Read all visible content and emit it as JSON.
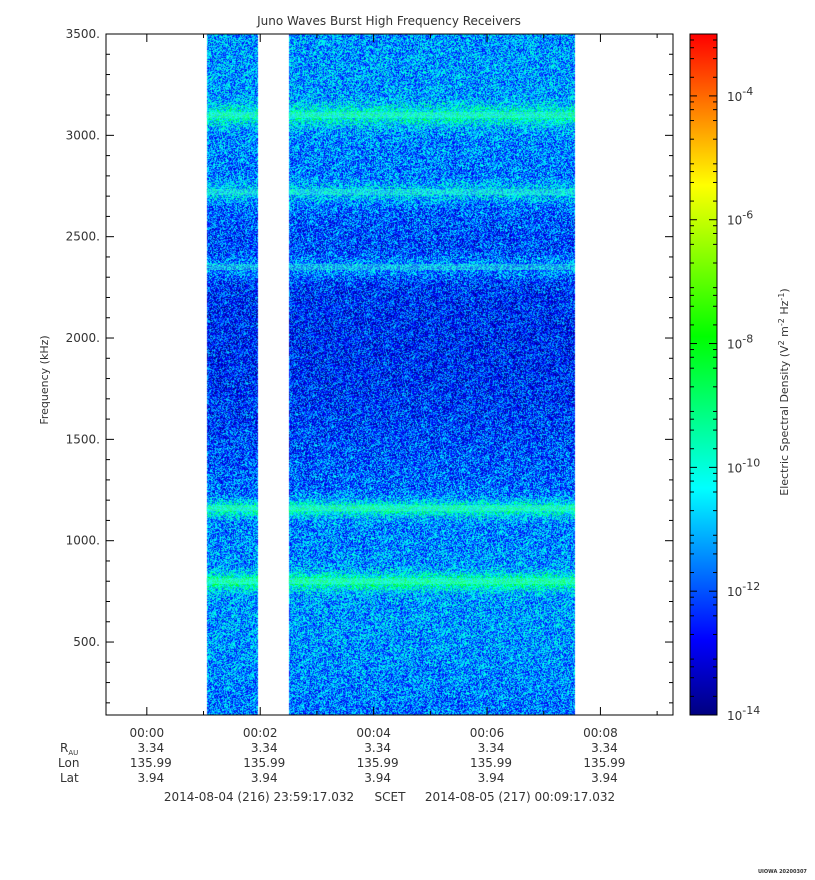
{
  "chart_data": {
    "type": "heatmap",
    "title": "Juno Waves Burst High Frequency Receivers",
    "ylabel": "Frequency (kHz)",
    "ylim": [
      140,
      3500
    ],
    "yticks": [
      {
        "value": 500,
        "label": "500."
      },
      {
        "value": 1000,
        "label": "1000."
      },
      {
        "value": 1500,
        "label": "1500."
      },
      {
        "value": 2000,
        "label": "2000."
      },
      {
        "value": 2500,
        "label": "2500."
      },
      {
        "value": 3000,
        "label": "3000."
      },
      {
        "value": 3500,
        "label": "3500."
      }
    ],
    "xlim_minutes": [
      -0.72,
      9.28
    ],
    "xticks": [
      {
        "value": 0,
        "label": "00:00"
      },
      {
        "value": 2,
        "label": "00:02"
      },
      {
        "value": 4,
        "label": "00:04"
      },
      {
        "value": 6,
        "label": "00:06"
      },
      {
        "value": 8,
        "label": "00:08"
      }
    ],
    "data_intervals_minutes": [
      [
        1.05,
        1.95
      ],
      [
        2.5,
        7.55
      ]
    ],
    "gap_minutes": [
      [
        1.95,
        2.5
      ]
    ],
    "emission_bands_khz": [
      {
        "freq": 3100,
        "strength": 0.55
      },
      {
        "freq": 2720,
        "strength": 0.4
      },
      {
        "freq": 2350,
        "strength": 0.35
      },
      {
        "freq": 1160,
        "strength": 0.7
      },
      {
        "freq": 800,
        "strength": 0.7
      }
    ],
    "colorbar": {
      "label": "Electric Spectral Density (V² m⁻² Hz⁻¹)",
      "label_main": "Electric Spectral Density (V",
      "label_sup1": "2",
      "label_m": " m",
      "label_sup2": "-2",
      "label_hz": " Hz",
      "label_sup3": "-1",
      "label_end": ")",
      "scale": "log",
      "range_exponent": [
        -14,
        -3
      ],
      "ticks": [
        {
          "exponent": -14,
          "base": "10",
          "exp": "-14"
        },
        {
          "exponent": -12,
          "base": "10",
          "exp": "-12"
        },
        {
          "exponent": -10,
          "base": "10",
          "exp": "-10"
        },
        {
          "exponent": -8,
          "base": "10",
          "exp": "-8"
        },
        {
          "exponent": -6,
          "base": "10",
          "exp": "-6"
        },
        {
          "exponent": -4,
          "base": "10",
          "exp": "-4"
        }
      ],
      "colors": [
        "#000080",
        "#0000ff",
        "#0080ff",
        "#00ffff",
        "#00ff80",
        "#00ff00",
        "#80ff00",
        "#ffff00",
        "#ff8000",
        "#ff0000"
      ]
    },
    "ephemeris": {
      "row_labels": {
        "r": "R",
        "r_sub": "AU",
        "lon": "Lon",
        "lat": "Lat"
      },
      "r_au": [
        "3.34",
        "3.34",
        "3.34",
        "3.34",
        "3.34"
      ],
      "lon": [
        "135.99",
        "135.99",
        "135.99",
        "135.99",
        "135.99"
      ],
      "lat": [
        "3.94",
        "3.94",
        "3.94",
        "3.94",
        "3.94"
      ]
    },
    "time_range": {
      "start": "2014-08-04 (216) 23:59:17.032",
      "scet": "SCET",
      "end": "2014-08-05 (217) 00:09:17.032"
    },
    "footer": "UIOWA 20200307"
  }
}
